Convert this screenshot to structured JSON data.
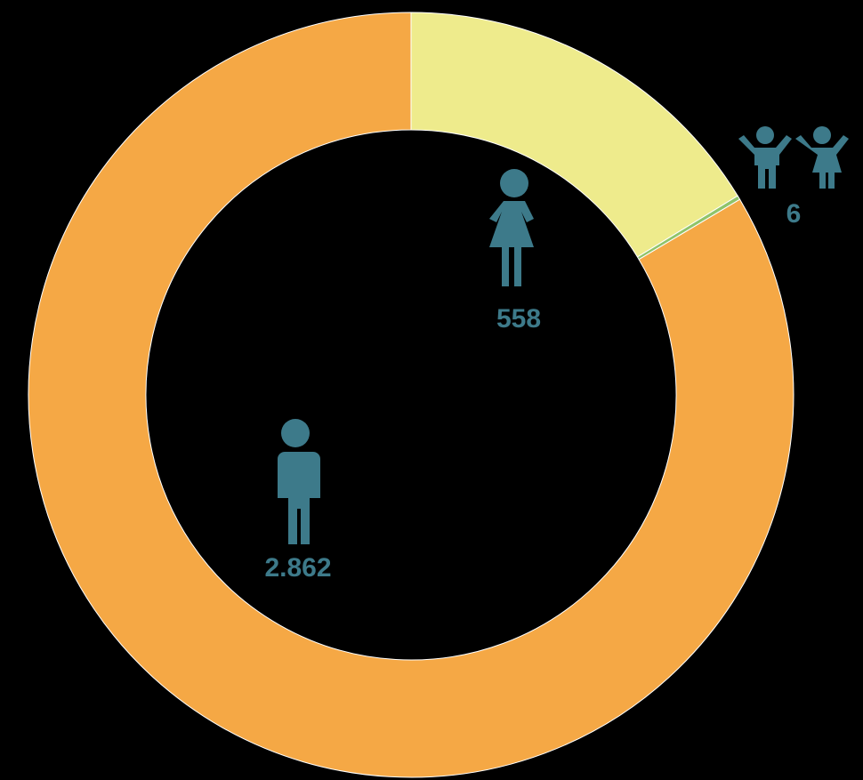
{
  "chart_data": {
    "type": "donut",
    "values": [
      558,
      6,
      2862
    ],
    "value_labels": [
      "558",
      "6",
      "2.862"
    ],
    "colors": [
      "#eeeb8c",
      "#8fc46a",
      "#f5a845"
    ]
  }
}
